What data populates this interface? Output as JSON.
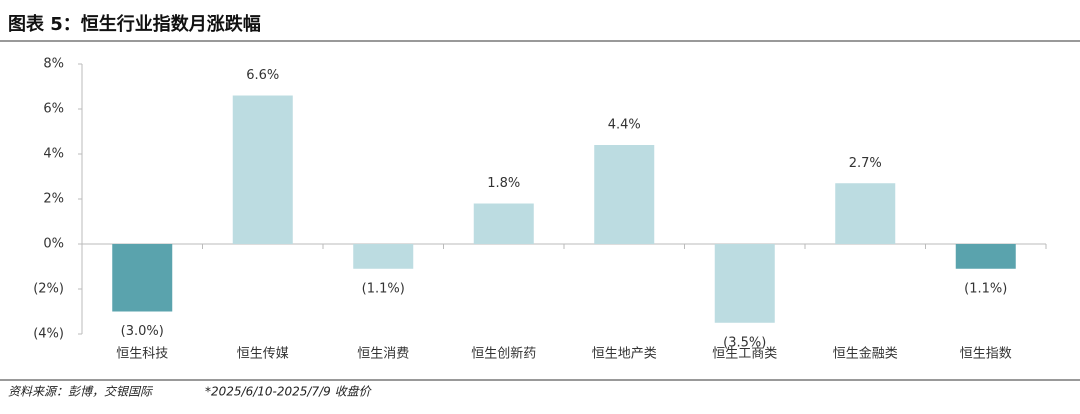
{
  "chart_data": {
    "type": "bar",
    "title": "图表 5：恒生行业指数月涨跌幅",
    "categories": [
      "恒生科技",
      "恒生传媒",
      "恒生消费",
      "恒生创新药",
      "恒生地产类",
      "恒生工商类",
      "恒生金融类",
      "恒生指数"
    ],
    "values": [
      -3.0,
      6.6,
      -1.1,
      1.8,
      4.4,
      -3.5,
      2.7,
      -1.1
    ],
    "value_labels": [
      "(3.0%)",
      "6.6%",
      "(1.1%)",
      "1.8%",
      "4.4%",
      "(3.5%)",
      "2.7%",
      "(1.1%)"
    ],
    "colors": [
      "#5aa3ad",
      "#bcdce1",
      "#bcdce1",
      "#bcdce1",
      "#bcdce1",
      "#bcdce1",
      "#bcdce1",
      "#5aa3ad"
    ],
    "ylim": [
      -4,
      8
    ],
    "yticks": [
      {
        "value": -4,
        "label": "(4%)"
      },
      {
        "value": -2,
        "label": "(2%)"
      },
      {
        "value": 0,
        "label": "0%"
      },
      {
        "value": 2,
        "label": "2%"
      },
      {
        "value": 4,
        "label": "4%"
      },
      {
        "value": 6,
        "label": "6%"
      },
      {
        "value": 8,
        "label": "8%"
      }
    ],
    "source": "资料来源：彭博，交银国际",
    "note": "*2025/6/10-2025/7/9 收盘价"
  }
}
